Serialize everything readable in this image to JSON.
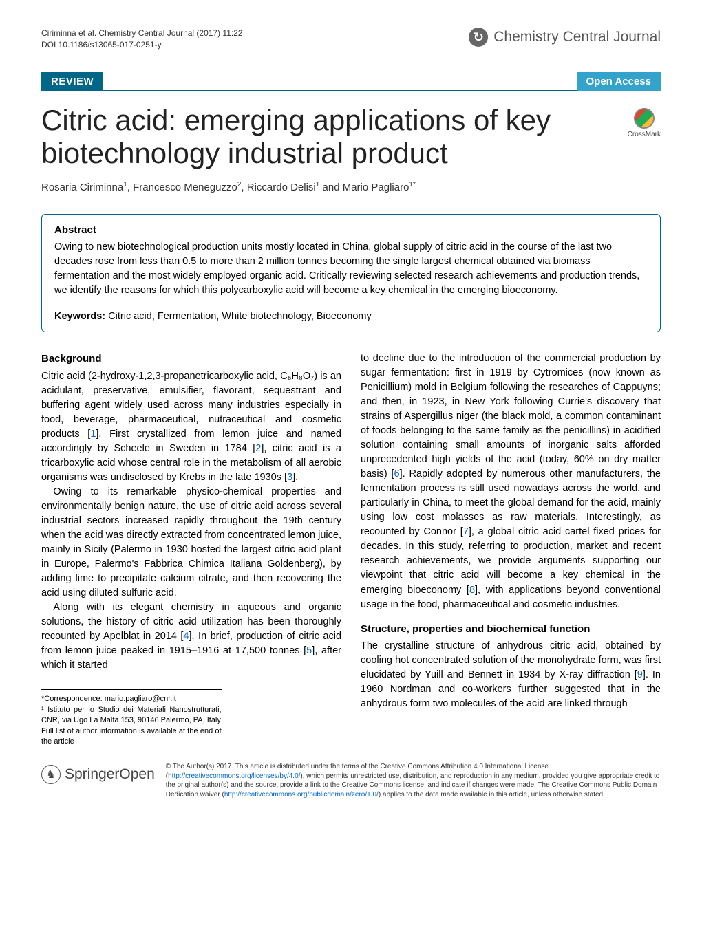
{
  "header": {
    "citation_line1": "Ciriminna et al. Chemistry Central Journal  (2017) 11:22",
    "citation_line2": "DOI 10.1186/s13065-017-0251-y",
    "journal_name": "Chemistry Central Journal",
    "cc_glyph": "↻"
  },
  "banner": {
    "review_label": "REVIEW",
    "open_access_label": "Open Access"
  },
  "article": {
    "title": "Citric acid: emerging applications of key biotechnology industrial product",
    "crossmark_label": "CrossMark",
    "authors_html": "Rosaria Ciriminna<sup>1</sup>, Francesco Meneguzzo<sup>2</sup>, Riccardo Delisi<sup>1</sup> and Mario Pagliaro<sup>1*</sup>"
  },
  "abstract": {
    "heading": "Abstract",
    "text": "Owing to new biotechnological production units mostly located in China, global supply of citric acid in the course of the last two decades rose from less than 0.5 to more than 2 million tonnes becoming the single largest chemical obtained via biomass fermentation and the most widely employed organic acid. Critically reviewing selected research achievements and production trends, we identify the reasons for which this polycarboxylic acid will become a key chemical in the emerging bioeconomy.",
    "keywords_label": "Keywords:",
    "keywords_text": "Citric acid, Fermentation, White biotechnology, Bioeconomy"
  },
  "body": {
    "background_heading": "Background",
    "left_p1": "Citric acid (2-hydroxy-1,2,3-propanetricarboxylic acid, C₆H₈O₇) is an acidulant, preservative, emulsifier, flavorant, sequestrant and buffering agent widely used across many industries especially in food, beverage, pharmaceutical, nutraceutical and cosmetic products [",
    "ref1": "1",
    "left_p1b": "]. First crystallized from lemon juice and named accordingly by Scheele in Sweden in 1784 [",
    "ref2": "2",
    "left_p1c": "], citric acid is a tricarboxylic acid whose central role in the metabolism of all aerobic organisms was undisclosed by Krebs in the late 1930s [",
    "ref3": "3",
    "left_p1d": "].",
    "left_p2": "Owing to its remarkable physico-chemical properties and environmentally benign nature, the use of citric acid across several industrial sectors increased rapidly throughout the 19th century when the acid was directly extracted from concentrated lemon juice, mainly in Sicily (Palermo in 1930 hosted the largest citric acid plant in Europe, Palermo's Fabbrica Chimica Italiana Goldenberg), by adding lime to precipitate calcium citrate, and then recovering the acid using diluted sulfuric acid.",
    "left_p3a": "Along with its elegant chemistry in aqueous and organic solutions, the history of citric acid utilization has been thoroughly recounted by Apelblat in 2014 [",
    "ref4": "4",
    "left_p3b": "]. In brief, production of citric acid from lemon juice peaked in 1915–1916 at 17,500 tonnes [",
    "ref5": "5",
    "left_p3c": "], after which it started",
    "right_p1a": "to decline due to the introduction of the commercial production by sugar fermentation: first in 1919 by Cytromices (now known as Penicillium) mold in Belgium following the researches of Cappuyns; and then, in 1923, in New York following Currie's discovery that strains of Aspergillus niger (the black mold, a common contaminant of foods belonging to the same family as the penicillins) in acidified solution containing small amounts of inorganic salts afforded unprecedented high yields of the acid (today, 60% on dry matter basis) [",
    "ref6": "6",
    "right_p1b": "]. Rapidly adopted by numerous other manufacturers, the fermentation process is still used nowadays across the world, and particularly in China, to meet the global demand for the acid, mainly using low cost molasses as raw materials. Interestingly, as recounted by Connor [",
    "ref7": "7",
    "right_p1c": "], a global citric acid cartel fixed prices for decades. In this study, referring to production, market and recent research achievements, we provide arguments supporting our viewpoint that citric acid will become a key chemical in the emerging bioeconomy [",
    "ref8": "8",
    "right_p1d": "], with applications beyond conventional usage in the food, pharmaceutical and cosmetic industries.",
    "structure_heading": "Structure, properties and biochemical function",
    "right_p2a": "The crystalline structure of anhydrous citric acid, obtained by cooling hot concentrated solution of the monohydrate form, was first elucidated by Yuill and Bennett in 1934 by X-ray diffraction [",
    "ref9": "9",
    "right_p2b": "]. In 1960 Nordman and co-workers further suggested that in the anhydrous form two molecules of the acid are linked through"
  },
  "footnotes": {
    "correspondence": "*Correspondence:  mario.pagliaro@cnr.it",
    "affiliation": "¹ Istituto per lo Studio dei Materiali Nanostrutturati, CNR, via Ugo La Malfa 153, 90146 Palermo, PA, Italy",
    "full_list": "Full list of author information is available at the end of the article"
  },
  "footer": {
    "springer_label": "Springer",
    "open_label": "Open",
    "horse_glyph": "♞",
    "license_a": "© The Author(s) 2017. This article is distributed under the terms of the Creative Commons Attribution 4.0 International License (",
    "license_link1": "http://creativecommons.org/licenses/by/4.0/",
    "license_b": "), which permits unrestricted use, distribution, and reproduction in any medium, provided you give appropriate credit to the original author(s) and the source, provide a link to the Creative Commons license, and indicate if changes were made. The Creative Commons Public Domain Dedication waiver (",
    "license_link2": "http://creativecommons.org/publicdomain/zero/1.0/",
    "license_c": ") applies to the data made available in this article, unless otherwise stated."
  },
  "colors": {
    "primary_blue": "#006687",
    "light_blue": "#33a3cc",
    "link_blue": "#0066cc"
  }
}
